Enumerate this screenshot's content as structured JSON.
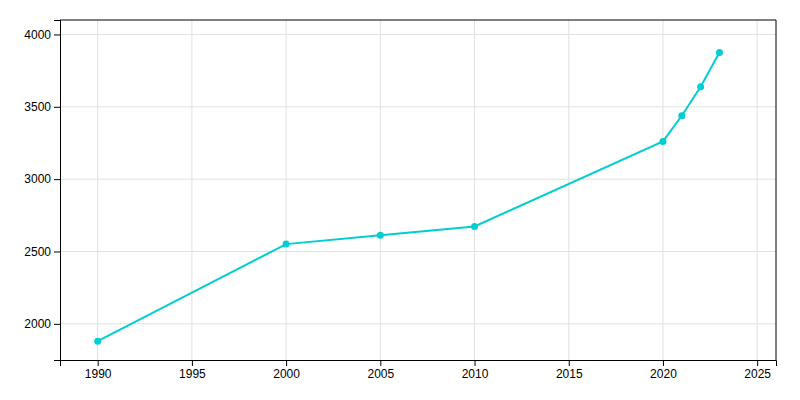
{
  "chart_data": {
    "type": "line",
    "x": [
      1990,
      2000,
      2005,
      2010,
      2020,
      2021,
      2022,
      2023
    ],
    "values": [
      1880,
      2551,
      2612,
      2673,
      3261,
      3438,
      3638,
      3876
    ],
    "color": "#00CED1",
    "marker": "circle",
    "xlim": [
      1988,
      2026
    ],
    "ylim": [
      1750,
      4100
    ],
    "xticks": [
      1990,
      1995,
      2000,
      2005,
      2010,
      2015,
      2020,
      2025
    ],
    "yticks": [
      2000,
      2500,
      3000,
      3500,
      4000
    ],
    "grid": true
  }
}
